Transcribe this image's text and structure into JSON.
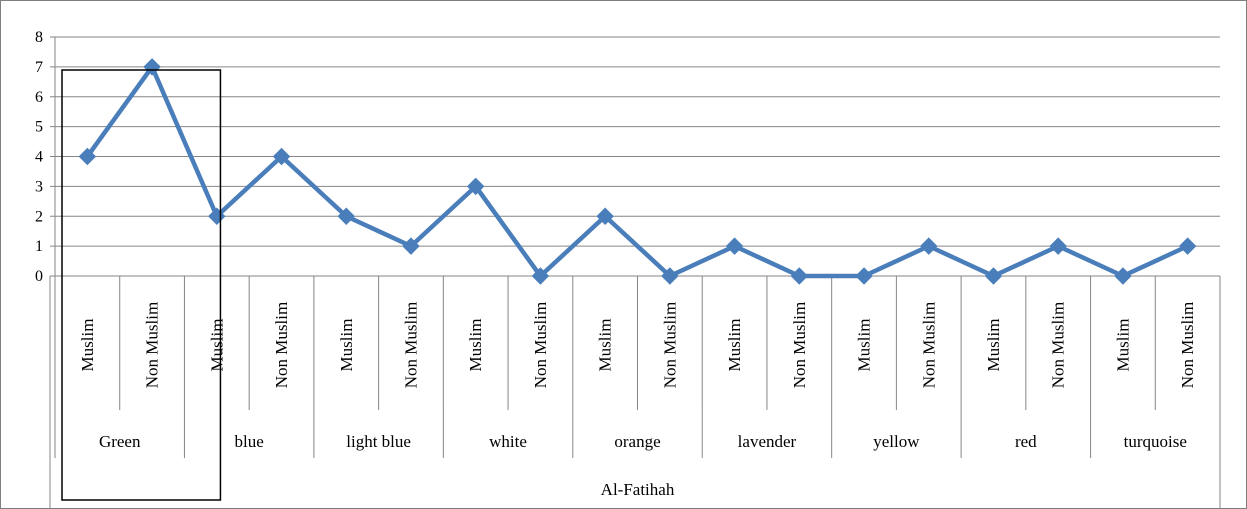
{
  "chart_data": {
    "type": "line",
    "title": "",
    "xlabel": "",
    "ylabel": "",
    "ylim": [
      0,
      8
    ],
    "yticks": [
      0,
      1,
      2,
      3,
      4,
      5,
      6,
      7,
      8
    ],
    "grid": true,
    "legend": "none",
    "x_levels": {
      "inner": [
        "Muslim",
        "Non Muslim",
        "Muslim",
        "Non Muslim",
        "Muslim",
        "Non Muslim",
        "Muslim",
        "Non Muslim",
        "Muslim",
        "Non Muslim",
        "Muslim",
        "Non Muslim",
        "Muslim",
        "Non Muslim",
        "Muslim",
        "Non Muslim",
        "Muslim",
        "Non Muslim"
      ],
      "groups": [
        "Green",
        "blue",
        "light blue",
        "white",
        "orange",
        "lavender",
        "yellow",
        "red",
        "turquoise"
      ],
      "top": "Al-Fatihah"
    },
    "series": [
      {
        "color": "#4a7ebb",
        "values": [
          4,
          7,
          2,
          4,
          2,
          1,
          3,
          0,
          2,
          0,
          1,
          0,
          0,
          1,
          0,
          1,
          0,
          1
        ]
      }
    ],
    "highlight": "Green"
  }
}
